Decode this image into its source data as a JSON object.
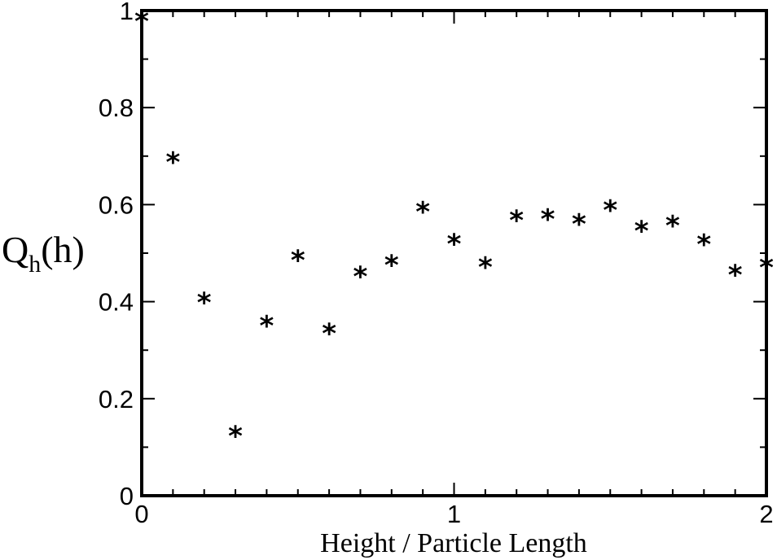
{
  "chart_data": {
    "type": "scatter",
    "title": "",
    "xlabel": "Height / Particle Length",
    "ylabel": {
      "main": "Q",
      "sub": "h",
      "tail": "(h)"
    },
    "xlim": [
      0,
      2
    ],
    "ylim": [
      0,
      1
    ],
    "x_ticks": [
      0,
      1,
      2
    ],
    "x_tick_labels": [
      "0",
      "1",
      "2"
    ],
    "y_ticks": [
      0,
      0.2,
      0.4,
      0.6,
      0.8,
      1
    ],
    "y_tick_labels": [
      "0",
      "0.2",
      "0.4",
      "0.6",
      "0.8",
      "1"
    ],
    "grid": false,
    "marker": "*",
    "series": [
      {
        "x": [
          0,
          0.1,
          0.2,
          0.3,
          0.4,
          0.5,
          0.6,
          0.7,
          0.8,
          0.9,
          1.0,
          1.1,
          1.2,
          1.3,
          1.4,
          1.5,
          1.6,
          1.7,
          1.8,
          1.9,
          2.0
        ],
        "values": [
          0.98,
          0.69,
          0.4,
          0.125,
          0.352,
          0.487,
          0.336,
          0.454,
          0.477,
          0.587,
          0.521,
          0.473,
          0.57,
          0.572,
          0.562,
          0.591,
          0.548,
          0.559,
          0.52,
          0.457,
          0.472
        ]
      }
    ]
  }
}
